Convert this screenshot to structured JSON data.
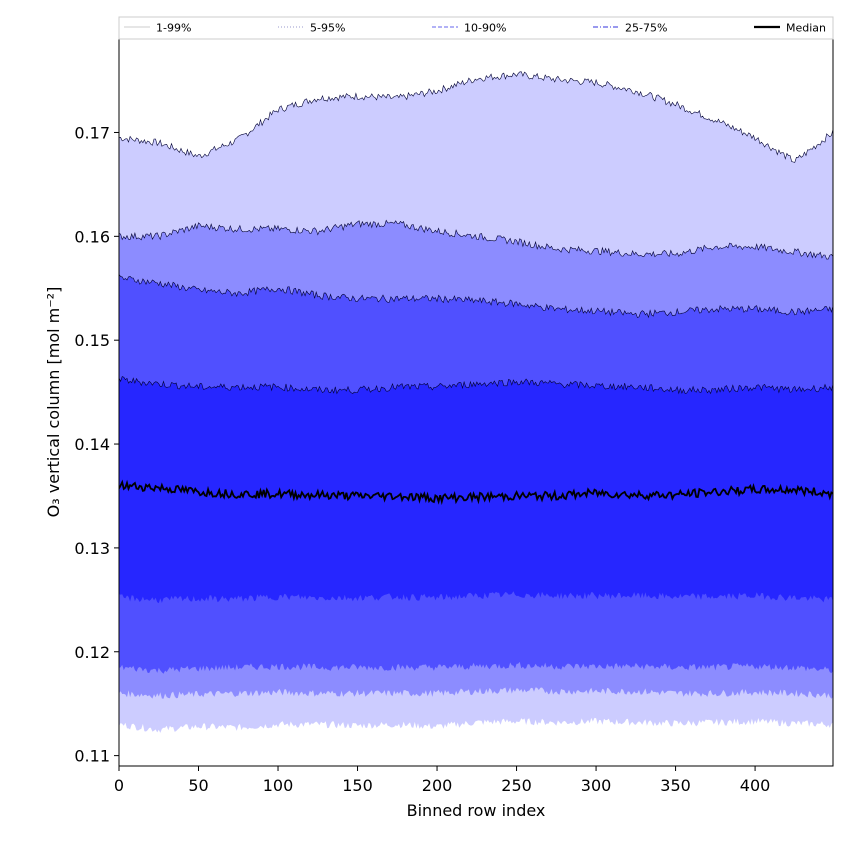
{
  "chart_data": {
    "type": "area",
    "xlabel": "Binned row index",
    "ylabel": "O₃ vertical column [mol m⁻²]",
    "xlim": [
      0,
      449
    ],
    "ylim": [
      0.109,
      0.179
    ],
    "x_ticks": [
      0,
      50,
      100,
      150,
      200,
      250,
      300,
      350,
      400
    ],
    "y_ticks": [
      0.11,
      0.12,
      0.13,
      0.14,
      0.15,
      0.16,
      0.17
    ],
    "legend_position": "top, horizontal",
    "x": [
      0,
      25,
      50,
      75,
      100,
      125,
      150,
      175,
      200,
      225,
      250,
      275,
      300,
      325,
      350,
      375,
      400,
      425,
      449
    ],
    "bands": [
      {
        "name": "1-99%",
        "color": "#ccccff",
        "line_color": "#000033",
        "lower": [
          0.113,
          0.1125,
          0.1128,
          0.1127,
          0.113,
          0.113,
          0.1129,
          0.113,
          0.1128,
          0.1132,
          0.1133,
          0.1132,
          0.1133,
          0.1132,
          0.1131,
          0.1132,
          0.1133,
          0.1131,
          0.113
        ],
        "upper": [
          0.1695,
          0.169,
          0.1677,
          0.1693,
          0.1722,
          0.1733,
          0.1735,
          0.1733,
          0.174,
          0.1752,
          0.1756,
          0.1751,
          0.1748,
          0.174,
          0.1727,
          0.1712,
          0.1695,
          0.1672,
          0.17
        ]
      },
      {
        "name": "5-95%",
        "color": "#8c8cff",
        "line_color": "#000033",
        "lower": [
          0.116,
          0.1158,
          0.1159,
          0.116,
          0.1161,
          0.116,
          0.116,
          0.116,
          0.116,
          0.1162,
          0.1163,
          0.1162,
          0.1162,
          0.1162,
          0.116,
          0.116,
          0.1161,
          0.116,
          0.1158
        ],
        "upper": [
          0.16,
          0.16,
          0.161,
          0.1607,
          0.1607,
          0.1605,
          0.1612,
          0.1612,
          0.1605,
          0.16,
          0.1595,
          0.1588,
          0.1586,
          0.1583,
          0.1583,
          0.159,
          0.159,
          0.1585,
          0.158
        ]
      },
      {
        "name": "10-90%",
        "color": "#5050ff",
        "line_color": "#000033",
        "lower": [
          0.1185,
          0.1182,
          0.1184,
          0.1185,
          0.1186,
          0.1185,
          0.1185,
          0.1185,
          0.1185,
          0.1186,
          0.1187,
          0.1186,
          0.1186,
          0.1186,
          0.1185,
          0.1185,
          0.1186,
          0.1185,
          0.1182
        ],
        "upper": [
          0.156,
          0.1555,
          0.1548,
          0.1545,
          0.155,
          0.1543,
          0.154,
          0.154,
          0.154,
          0.1538,
          0.1535,
          0.153,
          0.1528,
          0.1525,
          0.1527,
          0.153,
          0.153,
          0.1527,
          0.153
        ]
      },
      {
        "name": "25-75%",
        "color": "#2626ff",
        "line_color": "#000033",
        "lower": [
          0.1252,
          0.125,
          0.1251,
          0.1251,
          0.1253,
          0.1252,
          0.1252,
          0.1253,
          0.1252,
          0.1254,
          0.1255,
          0.1254,
          0.1254,
          0.1254,
          0.1253,
          0.1253,
          0.1254,
          0.1252,
          0.125
        ],
        "upper": [
          0.1462,
          0.1458,
          0.1455,
          0.1455,
          0.1455,
          0.1452,
          0.1452,
          0.1455,
          0.1455,
          0.1458,
          0.146,
          0.1458,
          0.1456,
          0.1455,
          0.1452,
          0.1452,
          0.1455,
          0.1452,
          0.1455
        ]
      }
    ],
    "median": {
      "name": "Median",
      "color": "#000000",
      "values": [
        0.136,
        0.1358,
        0.1354,
        0.1352,
        0.1352,
        0.1351,
        0.135,
        0.135,
        0.1348,
        0.1349,
        0.135,
        0.135,
        0.1353,
        0.1351,
        0.1351,
        0.1354,
        0.1356,
        0.1356,
        0.1352
      ]
    },
    "legend": [
      {
        "label": "1-99%",
        "color": "#cccccc",
        "style": "solid"
      },
      {
        "label": "5-95%",
        "color": "#9999cc",
        "style": "dotted"
      },
      {
        "label": "10-90%",
        "color": "#6666ee",
        "style": "dashed"
      },
      {
        "label": "25-75%",
        "color": "#3333dd",
        "style": "dashdot"
      },
      {
        "label": "Median",
        "color": "#000000",
        "style": "solid-thick"
      }
    ]
  }
}
